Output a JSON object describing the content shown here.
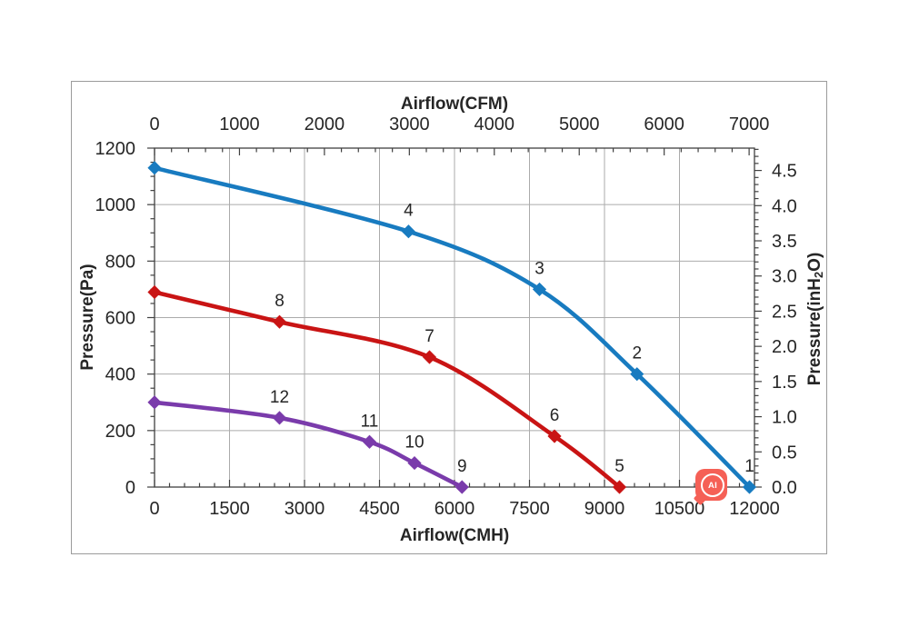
{
  "page": {
    "background": "#ffffff"
  },
  "watermark": {
    "label": "AI",
    "color": "#f56056"
  },
  "chart_data": {
    "type": "line",
    "title": "",
    "legend": "none",
    "grid": {
      "color": "#ababab",
      "axis_color": "#404040",
      "text_color": "#262626",
      "show_major_grid": true
    },
    "axes": {
      "top": {
        "label": "Airflow(CFM)",
        "ticks": [
          "0",
          "1000",
          "2000",
          "3000",
          "4000",
          "5000",
          "6000",
          "7000"
        ],
        "minor_step": 200,
        "cmh_per_cfm": 1.699
      },
      "bottom": {
        "label": "Airflow(CMH)",
        "ticks": [
          "0",
          "1500",
          "3000",
          "4500",
          "6000",
          "7500",
          "9000",
          "10500",
          "12000"
        ],
        "minor_step": 300,
        "range": [
          0,
          12000
        ]
      },
      "left": {
        "label": "Pressure(Pa)",
        "ticks": [
          "1200",
          "1000",
          "800",
          "600",
          "400",
          "200",
          "0"
        ],
        "minor_step": 50,
        "range": [
          0,
          1200
        ]
      },
      "right": {
        "label_pre": "Pressure(inH",
        "label_sub": "2",
        "label_post": "O)",
        "ticks": [
          "4.5",
          "4.0",
          "3.5",
          "3.0",
          "2.5",
          "2.0",
          "1.5",
          "1.0",
          "0.5",
          "0.0"
        ],
        "minor_step": 0.1,
        "pa_per_unit": 249.089
      }
    },
    "series": [
      {
        "name": "speed-1-blue",
        "color": "#187bc0",
        "points": [
          {
            "cmh": 0,
            "pa": 1130,
            "label": ""
          },
          {
            "cmh": 5080,
            "pa": 905,
            "label": "4"
          },
          {
            "cmh": 7700,
            "pa": 700,
            "label": "3"
          },
          {
            "cmh": 9650,
            "pa": 400,
            "label": "2"
          },
          {
            "cmh": 11900,
            "pa": 0,
            "label": "1"
          }
        ]
      },
      {
        "name": "speed-2-red",
        "color": "#c91414",
        "points": [
          {
            "cmh": 0,
            "pa": 690,
            "label": ""
          },
          {
            "cmh": 2500,
            "pa": 585,
            "label": "8"
          },
          {
            "cmh": 5500,
            "pa": 460,
            "label": "7"
          },
          {
            "cmh": 8000,
            "pa": 180,
            "label": "6"
          },
          {
            "cmh": 9300,
            "pa": 0,
            "label": "5"
          }
        ]
      },
      {
        "name": "speed-3-purple",
        "color": "#7a3bab",
        "points": [
          {
            "cmh": 0,
            "pa": 300,
            "label": ""
          },
          {
            "cmh": 2500,
            "pa": 245,
            "label": "12"
          },
          {
            "cmh": 4300,
            "pa": 160,
            "label": "11"
          },
          {
            "cmh": 5200,
            "pa": 85,
            "label": "10"
          },
          {
            "cmh": 6150,
            "pa": 0,
            "label": "9"
          }
        ]
      }
    ]
  }
}
